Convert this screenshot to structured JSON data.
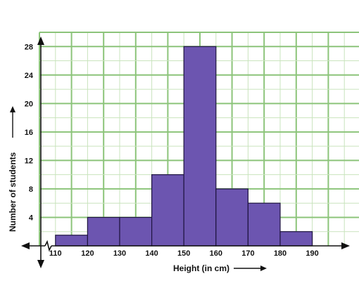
{
  "chart_data": {
    "type": "bar",
    "subtype": "histogram",
    "xlabel": "Height (in cm)",
    "ylabel": "Number of students",
    "x_ticks": [
      "110",
      "120",
      "130",
      "140",
      "150",
      "160",
      "170",
      "180",
      "190"
    ],
    "y_ticks": [
      "4",
      "8",
      "12",
      "16",
      "20",
      "24",
      "28"
    ],
    "bins": [
      {
        "from": 110,
        "to": 120,
        "value": 1.5
      },
      {
        "from": 120,
        "to": 130,
        "value": 4
      },
      {
        "from": 130,
        "to": 140,
        "value": 4
      },
      {
        "from": 140,
        "to": 150,
        "value": 10
      },
      {
        "from": 150,
        "to": 160,
        "value": 28
      },
      {
        "from": 160,
        "to": 170,
        "value": 8
      },
      {
        "from": 170,
        "to": 180,
        "value": 6
      },
      {
        "from": 180,
        "to": 190,
        "value": 2
      }
    ],
    "xlim": [
      105,
      205
    ],
    "ylim": [
      0,
      30
    ],
    "grid": true,
    "axis_break_on_x": true,
    "colors": {
      "bar_fill": "#6c55b0",
      "bar_stroke": "#1f1440",
      "grid_major": "#8cc47a",
      "grid_minor": "#c9e4bd",
      "axis": "#111111"
    }
  }
}
